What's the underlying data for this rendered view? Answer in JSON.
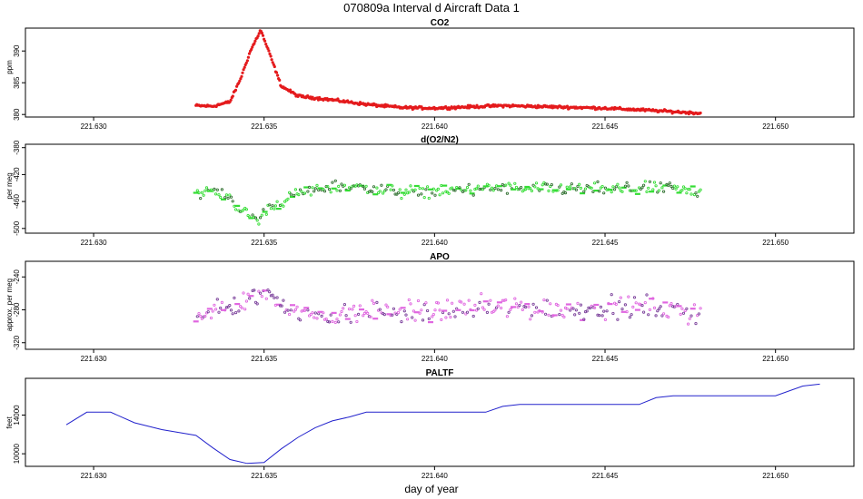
{
  "title": "070809a   Interval d Aircraft Data 1",
  "xlabel": "day of year",
  "colors": {
    "co2": "#e41a1c",
    "o2n2": "#33dd33",
    "o2n2_dark": "#2f6f2f",
    "apo": "#e066e0",
    "apo_dark": "#7a3f9a",
    "paltf": "#2222cc"
  },
  "chart_data": [
    {
      "type": "scatter",
      "title": "CO2",
      "ylabel": "ppm",
      "xlim": [
        221.628,
        221.6523
      ],
      "ylim": [
        379.6,
        393.6
      ],
      "x_ticks": [
        "221.630",
        "221.635",
        "221.640",
        "221.645",
        "221.650"
      ],
      "y_ticks": [
        "380",
        "385",
        "390"
      ],
      "x_range": [
        221.633,
        221.6478
      ],
      "grid": false,
      "series": [
        {
          "x": [
            221.633,
            221.6335,
            221.634,
            221.6343,
            221.6346,
            221.6349,
            221.6352,
            221.6355,
            221.636,
            221.637,
            221.638,
            221.639,
            221.64,
            221.642,
            221.645,
            221.6465,
            221.6478
          ],
          "y": [
            381.4,
            381.3,
            382.0,
            385.5,
            390.0,
            393.3,
            389.0,
            384.5,
            382.9,
            382.3,
            381.6,
            381.1,
            381.0,
            381.4,
            381.0,
            380.6,
            380.2
          ]
        }
      ]
    },
    {
      "type": "scatter",
      "title": "d(O2/N2)",
      "ylabel": "per meg",
      "xlim": [
        221.628,
        221.6523
      ],
      "ylim": [
        -507,
        -375
      ],
      "x_ticks": [
        "221.630",
        "221.635",
        "221.640",
        "221.645",
        "221.650"
      ],
      "y_ticks": [
        "-500",
        "-460",
        "-420",
        "-380"
      ],
      "x_range": [
        221.633,
        221.6478
      ],
      "grid": false,
      "series": [
        {
          "x": [
            221.633,
            221.6335,
            221.634,
            221.6344,
            221.6348,
            221.6352,
            221.6355,
            221.636,
            221.637,
            221.638,
            221.639,
            221.64,
            221.642,
            221.645,
            221.6465,
            221.6478
          ],
          "y": [
            -446,
            -445,
            -454,
            -475,
            -488,
            -465,
            -462,
            -448,
            -438,
            -440,
            -446,
            -444,
            -440,
            -442,
            -440,
            -444
          ]
        }
      ]
    },
    {
      "type": "scatter",
      "title": "APO",
      "ylabel": "approx. per meg",
      "xlim": [
        221.628,
        221.6523
      ],
      "ylim": [
        -328,
        -221
      ],
      "x_ticks": [
        "221.630",
        "221.635",
        "221.640",
        "221.645",
        "221.650"
      ],
      "y_ticks": [
        "-320",
        "-280",
        "-240"
      ],
      "x_range": [
        221.633,
        221.6478
      ],
      "grid": false,
      "series": [
        {
          "x": [
            221.633,
            221.634,
            221.6345,
            221.635,
            221.636,
            221.637,
            221.638,
            221.639,
            221.64,
            221.642,
            221.644,
            221.646,
            221.6478
          ],
          "y": [
            -283,
            -280,
            -270,
            -260,
            -283,
            -287,
            -280,
            -283,
            -282,
            -275,
            -280,
            -277,
            -282
          ]
        }
      ]
    },
    {
      "type": "line",
      "title": "PALTF",
      "ylabel": "feet",
      "xlim": [
        221.628,
        221.6523
      ],
      "ylim": [
        8700,
        17800
      ],
      "x_ticks": [
        "221.630",
        "221.635",
        "221.640",
        "221.645",
        "221.650"
      ],
      "y_ticks": [
        "10000",
        "14000"
      ],
      "grid": false,
      "series": [
        {
          "x": [
            221.6292,
            221.6298,
            221.6305,
            221.6312,
            221.632,
            221.633,
            221.6335,
            221.634,
            221.6345,
            221.635,
            221.6355,
            221.636,
            221.6365,
            221.637,
            221.6375,
            221.638,
            221.639,
            221.64,
            221.6415,
            221.642,
            221.6425,
            221.6435,
            221.645,
            221.646,
            221.6465,
            221.647,
            221.65,
            221.6508,
            221.6513
          ],
          "y": [
            13000,
            14300,
            14300,
            13200,
            12500,
            11900,
            10600,
            9400,
            9000,
            9100,
            10500,
            11700,
            12700,
            13400,
            13800,
            14300,
            14300,
            14300,
            14300,
            14900,
            15100,
            15100,
            15100,
            15100,
            15800,
            16000,
            16000,
            17000,
            17200
          ]
        }
      ]
    }
  ]
}
